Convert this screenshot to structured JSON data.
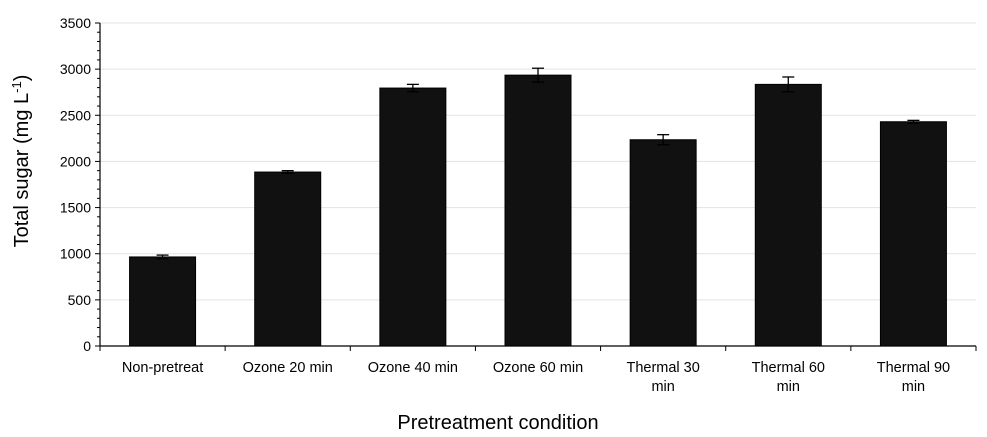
{
  "chart_data": {
    "type": "bar",
    "categories": [
      [
        "Non-pretreat"
      ],
      [
        "Ozone 20 min"
      ],
      [
        "Ozone 40 min"
      ],
      [
        "Ozone 60 min"
      ],
      [
        "Thermal 30",
        "min"
      ],
      [
        "Thermal 60",
        "min"
      ],
      [
        "Thermal 90",
        "min"
      ]
    ],
    "values": [
      965,
      1885,
      2795,
      2935,
      2235,
      2835,
      2430
    ],
    "errors": [
      20,
      15,
      40,
      75,
      55,
      80,
      15
    ],
    "xlabel": "Pretreatment condition",
    "ylabel_main": "Total sugar (mg L",
    "ylabel_sup": "-1",
    "ylabel_close": ")",
    "ylim": [
      0,
      3500
    ],
    "yticks": [
      0,
      500,
      1000,
      1500,
      2000,
      2500,
      3000,
      3500
    ],
    "grid": true,
    "bar_color": "#111111",
    "grid_color": "#e3e3e3"
  }
}
